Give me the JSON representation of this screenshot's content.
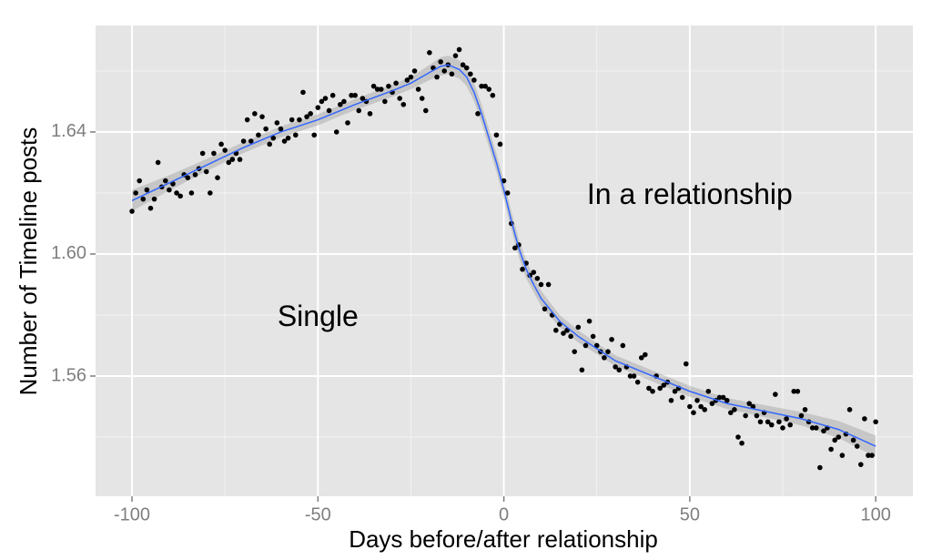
{
  "chart_data": {
    "type": "scatter",
    "x_label": "Days before/after relationship",
    "y_label": "Number of Timeline posts",
    "xlim": [
      -109.8,
      110.0
    ],
    "ylim": [
      1.5206,
      1.6749
    ],
    "xticks": [
      -100,
      -50,
      0,
      50,
      100
    ],
    "yticks": [
      1.56,
      {
        "value": 1.6,
        "label": "1.60"
      },
      1.64
    ],
    "minor_xticks": [
      -75,
      -25,
      25,
      75
    ],
    "minor_yticks": [
      1.54,
      1.58,
      1.62,
      1.66
    ],
    "grid": true,
    "point_color": "#000000",
    "smooth_color": "#3366ff",
    "band_color": "#999999",
    "panel_color": "#e5e5e5",
    "x": [
      -100,
      -99,
      -98,
      -97,
      -96,
      -95,
      -94,
      -93,
      -92,
      -91,
      -90,
      -89,
      -88,
      -87,
      -86,
      -85,
      -84,
      -83,
      -82,
      -81,
      -80,
      -79,
      -78,
      -77,
      -76,
      -75,
      -74,
      -73,
      -72,
      -71,
      -70,
      -69,
      -68,
      -67,
      -66,
      -65,
      -64,
      -63,
      -62,
      -61,
      -60,
      -59,
      -58,
      -57,
      -56,
      -55,
      -54,
      -53,
      -52,
      -51,
      -50,
      -49,
      -48,
      -47,
      -46,
      -45,
      -44,
      -43,
      -42,
      -41,
      -40,
      -39,
      -38,
      -37,
      -36,
      -35,
      -34,
      -33,
      -32,
      -31,
      -30,
      -29,
      -28,
      -27,
      -26,
      -25,
      -24,
      -23,
      -22,
      -21,
      -20,
      -19,
      -18,
      -17,
      -16,
      -15,
      -14,
      -13,
      -12,
      -11,
      -10,
      -9,
      -8,
      -7,
      -6,
      -5,
      -4,
      -3,
      -2,
      -1,
      0,
      1,
      2,
      3,
      4,
      5,
      6,
      7,
      8,
      9,
      10,
      11,
      12,
      13,
      14,
      15,
      16,
      17,
      18,
      19,
      20,
      21,
      22,
      23,
      24,
      25,
      26,
      27,
      28,
      29,
      30,
      31,
      32,
      33,
      34,
      35,
      36,
      37,
      38,
      39,
      40,
      41,
      42,
      43,
      44,
      45,
      46,
      47,
      48,
      49,
      50,
      51,
      52,
      53,
      54,
      55,
      56,
      57,
      58,
      59,
      60,
      61,
      62,
      63,
      64,
      65,
      66,
      67,
      68,
      69,
      70,
      71,
      72,
      73,
      74,
      75,
      76,
      77,
      78,
      79,
      80,
      81,
      82,
      83,
      84,
      85,
      86,
      87,
      88,
      89,
      90,
      91,
      92,
      93,
      94,
      95,
      96,
      97,
      98,
      99,
      100
    ],
    "values": [
      1.614,
      1.62,
      1.624,
      1.618,
      1.621,
      1.615,
      1.618,
      1.63,
      1.622,
      1.624,
      1.621,
      1.623,
      1.62,
      1.619,
      1.626,
      1.625,
      1.62,
      1.626,
      1.628,
      1.633,
      1.627,
      1.62,
      1.633,
      1.625,
      1.636,
      1.634,
      1.63,
      1.631,
      1.633,
      1.631,
      1.637,
      1.644,
      1.637,
      1.646,
      1.639,
      1.645,
      1.641,
      1.636,
      1.638,
      1.643,
      1.641,
      1.637,
      1.638,
      1.644,
      1.639,
      1.644,
      1.653,
      1.645,
      1.646,
      1.639,
      1.648,
      1.65,
      1.651,
      1.647,
      1.652,
      1.64,
      1.649,
      1.65,
      1.643,
      1.652,
      1.652,
      1.647,
      1.651,
      1.65,
      1.646,
      1.655,
      1.654,
      1.654,
      1.65,
      1.655,
      1.653,
      1.656,
      1.651,
      1.649,
      1.657,
      1.658,
      1.66,
      1.654,
      1.651,
      1.647,
      1.666,
      1.661,
      1.658,
      1.663,
      1.66,
      1.662,
      1.659,
      1.665,
      1.667,
      1.662,
      1.661,
      1.659,
      1.657,
      1.646,
      1.655,
      1.655,
      1.654,
      1.652,
      1.639,
      1.636,
      1.624,
      1.62,
      1.61,
      1.602,
      1.603,
      1.595,
      1.597,
      1.593,
      1.594,
      1.592,
      1.59,
      1.582,
      1.59,
      1.58,
      1.575,
      1.577,
      1.574,
      1.575,
      1.573,
      1.568,
      1.576,
      1.562,
      1.57,
      1.578,
      1.573,
      1.57,
      1.568,
      1.566,
      1.568,
      1.572,
      1.563,
      1.562,
      1.57,
      1.563,
      1.56,
      1.56,
      1.558,
      1.566,
      1.567,
      1.556,
      1.555,
      1.56,
      1.556,
      1.557,
      1.558,
      1.552,
      1.555,
      1.556,
      1.553,
      1.564,
      1.55,
      1.548,
      1.552,
      1.55,
      1.549,
      1.555,
      1.551,
      1.552,
      1.553,
      1.553,
      1.552,
      1.548,
      1.549,
      1.54,
      1.538,
      1.547,
      1.551,
      1.55,
      1.547,
      1.545,
      1.548,
      1.545,
      1.544,
      1.554,
      1.545,
      1.543,
      1.546,
      1.544,
      1.555,
      1.555,
      1.547,
      1.549,
      1.545,
      1.543,
      1.543,
      1.53,
      1.542,
      1.543,
      1.536,
      1.539,
      1.54,
      1.534,
      1.541,
      1.549,
      1.539,
      1.537,
      1.531,
      1.546,
      1.534,
      1.534,
      1.545
    ],
    "smooth_x": [
      -100,
      -90,
      -80,
      -70,
      -60,
      -50,
      -40,
      -30,
      -25,
      -20,
      -17,
      -15,
      -12,
      -10,
      -8,
      -6,
      -4,
      -2,
      0,
      2,
      4,
      6,
      8,
      10,
      15,
      20,
      25,
      30,
      40,
      50,
      60,
      70,
      80,
      90,
      100
    ],
    "smooth": [
      1.6175,
      1.6233,
      1.6291,
      1.6349,
      1.64,
      1.644,
      1.649,
      1.6535,
      1.656,
      1.6595,
      1.6615,
      1.662,
      1.6605,
      1.658,
      1.653,
      1.646,
      1.638,
      1.63,
      1.621,
      1.611,
      1.602,
      1.595,
      1.59,
      1.5855,
      1.578,
      1.573,
      1.569,
      1.565,
      1.56,
      1.555,
      1.551,
      1.5485,
      1.546,
      1.5425,
      1.537
    ],
    "band_lower": [
      1.614,
      1.6208,
      1.6271,
      1.6331,
      1.6382,
      1.6422,
      1.6472,
      1.6515,
      1.654,
      1.657,
      1.6585,
      1.659,
      1.6575,
      1.655,
      1.65,
      1.643,
      1.635,
      1.627,
      1.618,
      1.608,
      1.599,
      1.592,
      1.5875,
      1.583,
      1.576,
      1.571,
      1.5672,
      1.5632,
      1.5582,
      1.5532,
      1.5492,
      1.5465,
      1.5438,
      1.5397,
      1.5335
    ],
    "band_upper": [
      1.621,
      1.6258,
      1.6311,
      1.6367,
      1.6418,
      1.6458,
      1.6508,
      1.6555,
      1.658,
      1.662,
      1.6645,
      1.665,
      1.6635,
      1.661,
      1.656,
      1.649,
      1.641,
      1.633,
      1.624,
      1.614,
      1.605,
      1.598,
      1.5925,
      1.588,
      1.58,
      1.575,
      1.5708,
      1.5668,
      1.5618,
      1.5568,
      1.5528,
      1.5505,
      1.5482,
      1.5453,
      1.5405
    ],
    "annotations": [
      {
        "text": "Single",
        "x": -50,
        "y": 1.579
      },
      {
        "text": "In a relationship",
        "x": 50,
        "y": 1.619
      }
    ]
  }
}
